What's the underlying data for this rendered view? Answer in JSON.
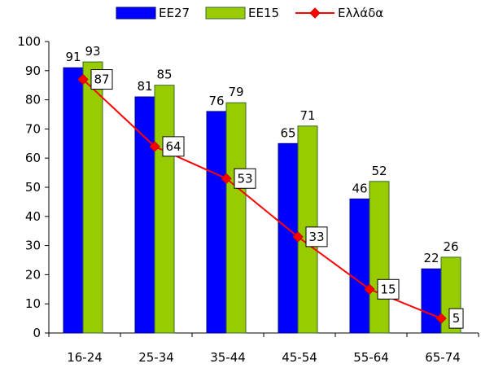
{
  "chart_data": {
    "type": "bar",
    "categories": [
      "16-24",
      "25-34",
      "35-44",
      "45-54",
      "55-64",
      "65-74"
    ],
    "series": [
      {
        "name": "ΕΕ27",
        "kind": "bar",
        "color": "#0000ff",
        "stroke": "#000080",
        "values": [
          91,
          81,
          76,
          65,
          46,
          22
        ]
      },
      {
        "name": "ΕΕ15",
        "kind": "bar",
        "color": "#99cc00",
        "stroke": "#336633",
        "values": [
          93,
          85,
          79,
          71,
          52,
          26
        ]
      },
      {
        "name": "Ελλάδα",
        "kind": "line",
        "color": "#ff0000",
        "values": [
          87,
          64,
          53,
          33,
          15,
          5
        ]
      }
    ],
    "ylim": [
      0,
      100
    ],
    "yticks": [
      0,
      10,
      20,
      30,
      40,
      50,
      60,
      70,
      80,
      90,
      100
    ],
    "grid": false,
    "legend_position": "top"
  }
}
